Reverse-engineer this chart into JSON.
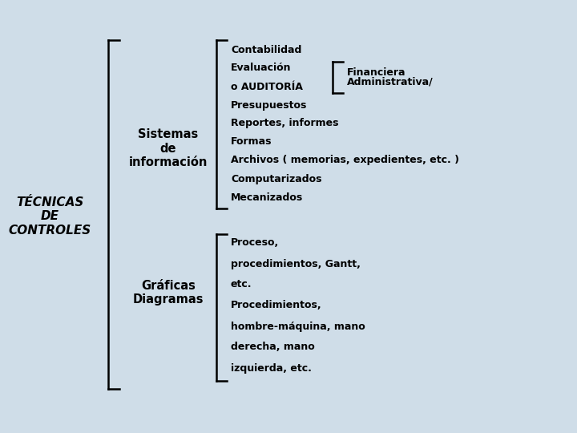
{
  "bg_color": "#cfdde8",
  "text_color": "#000000",
  "line_color": "#000000",
  "title": "TÉCNICAS\nDE\nCONTROLES",
  "title_fontsize": 11,
  "sistemas_label": "Sistemas\nde\ninformación",
  "graficas_label": "Gráficas\nDiagramas",
  "sistemas_items": [
    "Contabilidad",
    "Evaluación",
    "o AUDITORÍA",
    "Presupuestos",
    "Reportes, informes",
    "Formas",
    "Archivos ( memorias, expedientes, etc. )",
    "Computarizados",
    "Mecanizados"
  ],
  "financiera_items": [
    "Financiera",
    "Administrativa/"
  ],
  "graficas_items": [
    "Proceso,",
    "procedimientos, Gantt,",
    "etc.",
    "Procedimientos,",
    "hombre-máquina, mano",
    "derecha, mano",
    "izquierda, etc."
  ],
  "fontsize": 9.0
}
